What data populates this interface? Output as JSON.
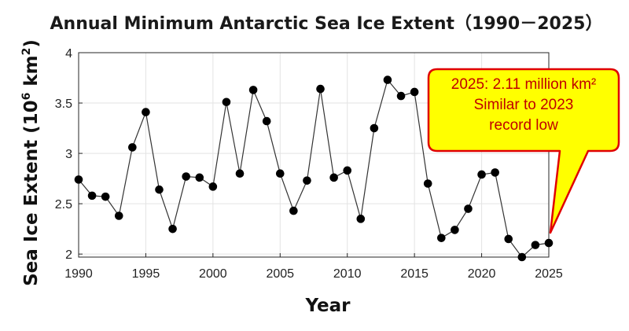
{
  "chart_data": {
    "type": "line",
    "title": "Annual Minimum Antarctic Sea Ice Extent（1990－2025）",
    "xlabel": "Year",
    "ylabel_main": "Sea Ice Extent (10",
    "ylabel_exp": "6",
    "ylabel_unit": " km",
    "ylabel_unit_exp": "2",
    "ylabel_close": ")",
    "xlim": [
      1990,
      2025
    ],
    "ylim": [
      1.97,
      4
    ],
    "xticks": [
      1990,
      1995,
      2000,
      2005,
      2010,
      2015,
      2020,
      2025
    ],
    "xtick_labels": [
      "1990",
      "1995",
      "2000",
      "2005",
      "2010",
      "2015",
      "2020",
      "2025"
    ],
    "yticks": [
      2,
      2.5,
      3,
      3.5,
      4
    ],
    "ytick_labels": [
      "2",
      "2.5",
      "3",
      "3.5",
      "4"
    ],
    "grid": true,
    "colors": {
      "line": "#333333",
      "marker": "#000000",
      "grid": "#e3e3e3",
      "callout_fill": "#ffff00",
      "callout_border": "#e00000",
      "callout_text": "#c00000"
    },
    "series": [
      {
        "x": [
          1990,
          1991,
          1992,
          1993,
          1994,
          1995,
          1996,
          1997,
          1998,
          1999,
          2000,
          2001,
          2002,
          2003,
          2004,
          2005,
          2006,
          2007,
          2008,
          2009,
          2010,
          2011,
          2012,
          2013,
          2014,
          2015,
          2016,
          2017,
          2018,
          2019,
          2020,
          2021,
          2022,
          2023,
          2024,
          2025
        ],
        "values": [
          2.74,
          2.58,
          2.57,
          2.38,
          3.06,
          3.41,
          2.64,
          2.25,
          2.77,
          2.76,
          2.67,
          3.51,
          2.8,
          3.63,
          3.32,
          2.8,
          2.43,
          2.73,
          3.64,
          2.76,
          2.83,
          2.35,
          3.25,
          3.73,
          3.57,
          3.61,
          2.7,
          2.16,
          2.24,
          2.45,
          2.79,
          2.81,
          2.15,
          1.97,
          2.09,
          2.11
        ]
      }
    ],
    "annotation": {
      "lines": [
        "2025: 2.11 million km²",
        "Similar to 2023",
        "record low"
      ],
      "points_to": [
        2025,
        2.11
      ]
    }
  }
}
